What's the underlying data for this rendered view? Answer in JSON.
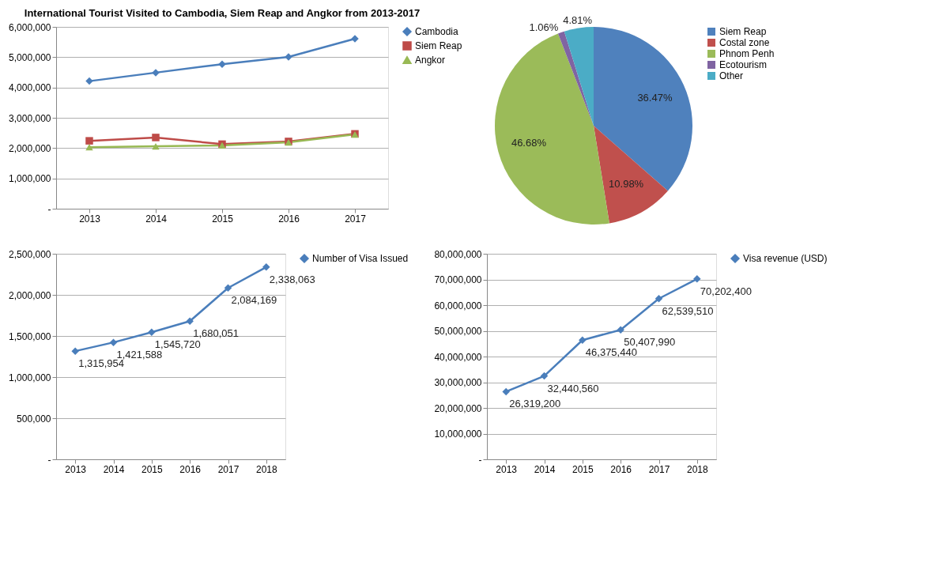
{
  "chart_data": [
    {
      "type": "line",
      "title": "International Tourist Visited to Cambodia, Siem Reap and Angkor from 2013-2017",
      "categories": [
        "2013",
        "2014",
        "2015",
        "2016",
        "2017"
      ],
      "series": [
        {
          "name": "Cambodia",
          "color": "#4a7ebb",
          "marker": "diamond",
          "values": [
            4210000,
            4490000,
            4770000,
            5010000,
            5610000
          ]
        },
        {
          "name": "Siem Reap",
          "color": "#be4b48",
          "marker": "square",
          "values": [
            2240000,
            2350000,
            2130000,
            2220000,
            2470000
          ]
        },
        {
          "name": "Angkor",
          "color": "#98b954",
          "marker": "triangle",
          "values": [
            2030000,
            2060000,
            2090000,
            2190000,
            2450000
          ]
        }
      ],
      "ylim": [
        0,
        6000000
      ],
      "yticks": [
        {
          "value": 0,
          "label": "-"
        },
        {
          "value": 1000000,
          "label": "1,000,000"
        },
        {
          "value": 2000000,
          "label": "2,000,000"
        },
        {
          "value": 3000000,
          "label": "3,000,000"
        },
        {
          "value": 4000000,
          "label": "4,000,000"
        },
        {
          "value": 5000000,
          "label": "5,000,000"
        },
        {
          "value": 6000000,
          "label": "6,000,000"
        }
      ],
      "grid": "y",
      "legend": "right",
      "line_style": "solid"
    },
    {
      "type": "pie",
      "categories": [
        "Siem Reap",
        "Costal zone",
        "Phnom Penh",
        "Ecotourism",
        "Other"
      ],
      "values": [
        36.47,
        10.98,
        46.68,
        1.06,
        4.81
      ],
      "colors": [
        "#4f81bd",
        "#c0504d",
        "#9bbb59",
        "#8064a2",
        "#4bacc6"
      ],
      "value_labels": [
        "36.47%",
        "10.98%",
        "46.68%",
        "1.06%",
        "4.81%"
      ],
      "legend": "right"
    },
    {
      "type": "line",
      "categories": [
        "2013",
        "2014",
        "2015",
        "2016",
        "2017",
        "2018"
      ],
      "series": [
        {
          "name": "Number of Visa Issued",
          "color": "#4a7ebb",
          "marker": "diamond",
          "values": [
            1315954,
            1421588,
            1545720,
            1680051,
            2084169,
            2338063
          ],
          "value_labels": [
            "1,315,954",
            "1,421,588",
            "1,545,720",
            "1,680,051",
            "2,084,169",
            "2,338,063"
          ]
        }
      ],
      "ylim": [
        0,
        2500000
      ],
      "yticks": [
        {
          "value": 0,
          "label": "-"
        },
        {
          "value": 500000,
          "label": "500,000"
        },
        {
          "value": 1000000,
          "label": "1,000,000"
        },
        {
          "value": 1500000,
          "label": "1,500,000"
        },
        {
          "value": 2000000,
          "label": "2,000,000"
        },
        {
          "value": 2500000,
          "label": "2,500,000"
        }
      ],
      "grid": "y",
      "legend": "right",
      "line_style": "solid"
    },
    {
      "type": "line",
      "categories": [
        "2013",
        "2014",
        "2015",
        "2016",
        "2017",
        "2018"
      ],
      "series": [
        {
          "name": "Visa revenue (USD)",
          "color": "#4a7ebb",
          "marker": "diamond",
          "values": [
            26319200,
            32440560,
            46375440,
            50407990,
            62539510,
            70202400
          ],
          "value_labels": [
            "26,319,200",
            "32,440,560",
            "46,375,440",
            "50,407,990",
            "62,539,510",
            "70,202,400"
          ]
        }
      ],
      "ylim": [
        0,
        80000000
      ],
      "yticks": [
        {
          "value": 0,
          "label": "-"
        },
        {
          "value": 10000000,
          "label": "10,000,000"
        },
        {
          "value": 20000000,
          "label": "20,000,000"
        },
        {
          "value": 30000000,
          "label": "30,000,000"
        },
        {
          "value": 40000000,
          "label": "40,000,000"
        },
        {
          "value": 50000000,
          "label": "50,000,000"
        },
        {
          "value": 60000000,
          "label": "60,000,000"
        },
        {
          "value": 70000000,
          "label": "70,000,000"
        },
        {
          "value": 80000000,
          "label": "80,000,000"
        }
      ],
      "grid": "y",
      "legend": "right",
      "line_style": "solid"
    }
  ]
}
